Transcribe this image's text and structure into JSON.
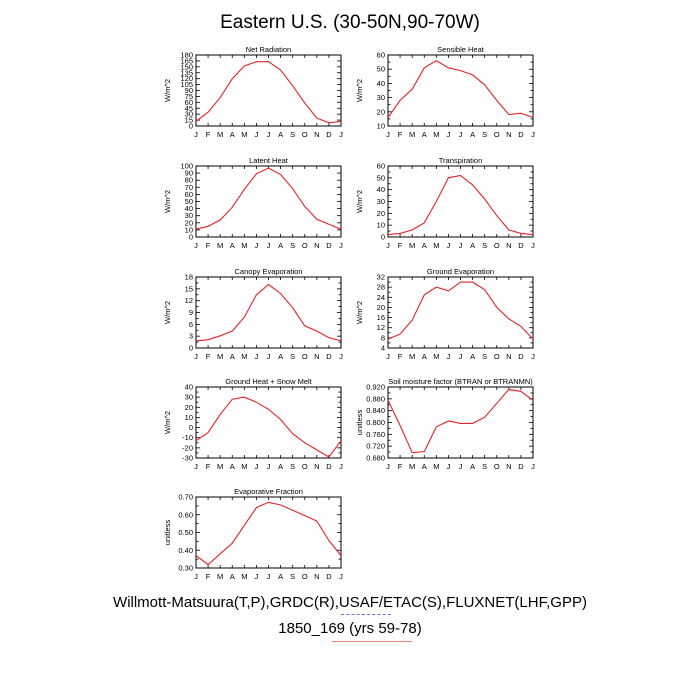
{
  "title": "Eastern U.S. (30-50N,90-70W)",
  "footer": {
    "sources": "Willmott-Matsuura(T,P),GRDC(R),USAF/ETAC(S),FLUXNET(LHF,GPP)",
    "run": "1850_169 (yrs 59-78)"
  },
  "line_color": "#e8202a",
  "months": [
    "J",
    "F",
    "M",
    "A",
    "M",
    "J",
    "J",
    "A",
    "S",
    "O",
    "N",
    "D",
    "J"
  ],
  "chart_data": [
    {
      "type": "line",
      "title": "Net Radiation",
      "ylabel": "W/m^2",
      "ylim": [
        0,
        180
      ],
      "yticks": [
        "0",
        "15",
        "30",
        "45",
        "60",
        "75",
        "90",
        "105",
        "120",
        "135",
        "150",
        "165",
        "180"
      ],
      "ylabel_every": 1,
      "values": [
        12,
        35,
        72,
        120,
        152,
        163,
        163,
        142,
        102,
        58,
        20,
        8,
        12
      ]
    },
    {
      "type": "line",
      "title": "Sensible Heat",
      "ylabel": "W/m^2",
      "ylim": [
        10,
        60
      ],
      "yticks": [
        "10",
        "15",
        "20",
        "25",
        "30",
        "35",
        "40",
        "45",
        "50",
        "55",
        "60"
      ],
      "ylabel_every": 2,
      "values": [
        16,
        28,
        36,
        51,
        56,
        51,
        49,
        46,
        39,
        28,
        18,
        19,
        16
      ]
    },
    {
      "type": "line",
      "title": "Latent Heat",
      "ylabel": "W/m^2",
      "ylim": [
        0,
        100
      ],
      "yticks": [
        "0",
        "10",
        "20",
        "30",
        "40",
        "50",
        "60",
        "70",
        "80",
        "90",
        "100"
      ],
      "ylabel_every": 1,
      "values": [
        11,
        15,
        24,
        42,
        67,
        89,
        97,
        88,
        68,
        43,
        25,
        18,
        11
      ]
    },
    {
      "type": "line",
      "title": "Transpiration",
      "ylabel": "W/m^2",
      "ylim": [
        0,
        60
      ],
      "yticks": [
        "0",
        "5",
        "10",
        "15",
        "20",
        "25",
        "30",
        "35",
        "40",
        "45",
        "50",
        "55",
        "60"
      ],
      "ylabel_every": 2,
      "values": [
        2,
        3,
        6,
        12,
        30,
        50,
        52,
        44,
        32,
        18,
        6,
        3,
        2
      ]
    },
    {
      "type": "line",
      "title": "Canopy Evaporation",
      "ylabel": "W/m^2",
      "ylim": [
        0,
        18
      ],
      "yticks": [
        "0",
        "1.5",
        "3",
        "4.5",
        "6",
        "7.5",
        "9",
        "10.5",
        "12",
        "13.5",
        "15",
        "16.5",
        "18"
      ],
      "ylabel_every": 2,
      "values": [
        1.8,
        2.1,
        3.1,
        4.3,
        7.8,
        13.5,
        16.1,
        13.8,
        10.2,
        5.6,
        4.3,
        2.6,
        1.8
      ]
    },
    {
      "type": "line",
      "title": "Ground Evaporation",
      "ylabel": "W/m^2",
      "ylim": [
        4,
        32
      ],
      "yticks": [
        "4",
        "6",
        "8",
        "10",
        "12",
        "14",
        "16",
        "18",
        "20",
        "22",
        "24",
        "26",
        "28",
        "30",
        "32"
      ],
      "ylabel_every": 2,
      "values": [
        7.5,
        9.5,
        15,
        25,
        28,
        26.5,
        30,
        30,
        27,
        20,
        15.5,
        12.5,
        7.5
      ]
    },
    {
      "type": "line",
      "title": "Ground Heat + Snow Melt",
      "ylabel": "W/m^2",
      "ylim": [
        -30,
        40
      ],
      "yticks": [
        "-30",
        "-25",
        "-20",
        "-15",
        "-10",
        "-5",
        "0",
        "5",
        "10",
        "15",
        "20",
        "25",
        "30",
        "35",
        "40"
      ],
      "ylabel_every": 2,
      "values": [
        -13,
        -5,
        13,
        28,
        30,
        25,
        18,
        8,
        -6,
        -15,
        -22,
        -29,
        -13
      ]
    },
    {
      "type": "line",
      "title": "Soil moisture factor (BTRAN or BTRANMN)",
      "ylabel": "unitless",
      "ylim": [
        0.68,
        0.92
      ],
      "yticks": [
        "0.680",
        "0.700",
        "0.720",
        "0.740",
        "0.760",
        "0.780",
        "0.800",
        "0.820",
        "0.840",
        "0.860",
        "0.880",
        "0.900",
        "0.920"
      ],
      "ylabel_every": 2,
      "values": [
        0.875,
        0.79,
        0.698,
        0.702,
        0.785,
        0.805,
        0.797,
        0.797,
        0.818,
        0.865,
        0.912,
        0.905,
        0.875
      ]
    },
    {
      "type": "line",
      "title": "Evaporative Fraction",
      "ylabel": "unitless",
      "ylim": [
        0.3,
        0.7
      ],
      "yticks": [
        "0.30",
        "0.35",
        "0.40",
        "0.45",
        "0.50",
        "0.55",
        "0.60",
        "0.65",
        "0.70"
      ],
      "ylabel_every": 2,
      "values": [
        0.37,
        0.32,
        0.38,
        0.44,
        0.54,
        0.64,
        0.67,
        0.655,
        0.625,
        0.595,
        0.565,
        0.455,
        0.37
      ]
    }
  ]
}
